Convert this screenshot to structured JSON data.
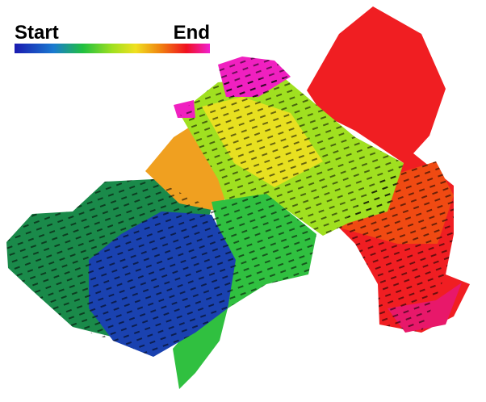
{
  "legend": {
    "start_label": "Start",
    "end_label": "End"
  }
}
